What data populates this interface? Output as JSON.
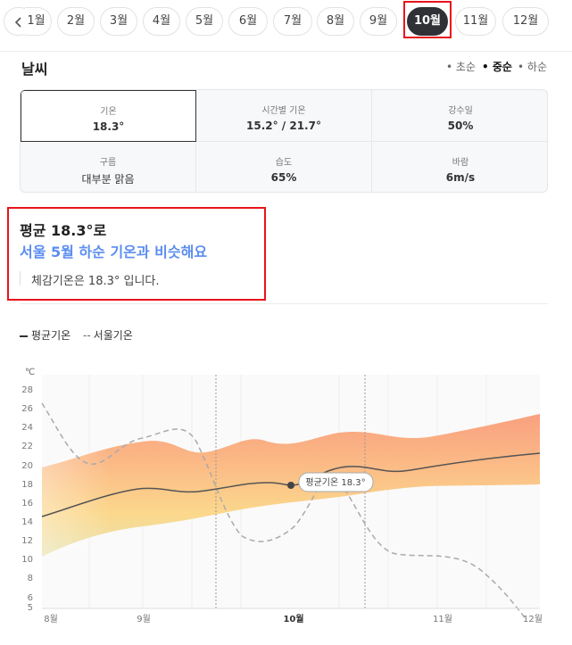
{
  "months": {
    "items": [
      "1월",
      "2월",
      "3월",
      "4월",
      "5월",
      "6월",
      "7월",
      "8월",
      "9월",
      "10월",
      "11월",
      "12월"
    ],
    "active": "10월"
  },
  "weather": {
    "title": "날씨",
    "segments": [
      "초순",
      "중순",
      "하순"
    ],
    "selected_segment": "중순",
    "stats": [
      {
        "label": "기온",
        "value": "18.3°"
      },
      {
        "label": "시간별 기온",
        "value": "15.2° / 21.7°"
      },
      {
        "label": "강수일",
        "value": "50%"
      },
      {
        "label": "구름",
        "value": "대부분 맑음"
      },
      {
        "label": "습도",
        "value": "65%"
      },
      {
        "label": "바람",
        "value": "6m/s"
      }
    ]
  },
  "summary": {
    "line1": "평균 18.3°로",
    "line2": "서울 5월 하순 기온과 비슷해요",
    "line3": "체감기온은 18.3° 입니다."
  },
  "legend": {
    "avg": "평균기온",
    "seoul": "서울기온"
  },
  "chart_data": {
    "type": "line",
    "ylabel": "℃",
    "yticks": [
      "28",
      "26",
      "24",
      "22",
      "20",
      "18",
      "16",
      "14",
      "12",
      "10",
      "8",
      "6",
      "5"
    ],
    "xticks": [
      "8월",
      "9월",
      "10월",
      "11월",
      "12월"
    ],
    "highlight_label": "평균기온 18.3°",
    "colors": {
      "avg": "#555555",
      "seoul": "#aaaaaa",
      "band_top": "#fa9a7e",
      "band_bottom": "#f7dc8a"
    }
  }
}
